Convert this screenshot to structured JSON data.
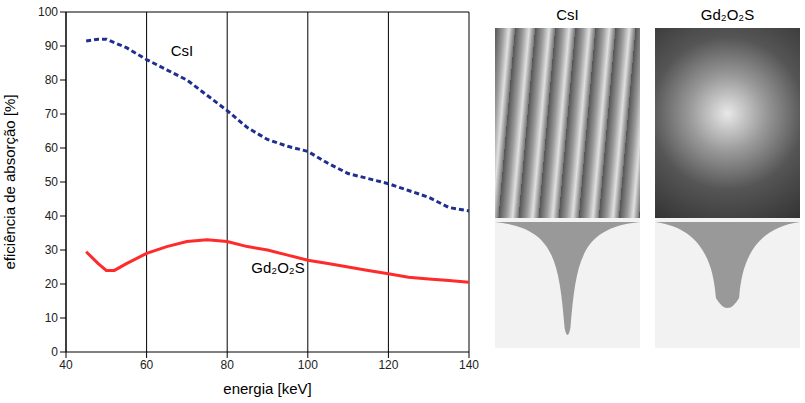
{
  "chart_data": {
    "type": "line",
    "x_label": "energia [keV]",
    "y_label": "eficiência de absorção [%]",
    "x": [
      45,
      48,
      50,
      52,
      55,
      60,
      65,
      70,
      75,
      80,
      85,
      90,
      95,
      100,
      105,
      110,
      115,
      120,
      125,
      130,
      135,
      140
    ],
    "series": [
      {
        "name": "CsI",
        "color": "#1f2f8f",
        "line_style": "dashed",
        "values": [
          91.5,
          92,
          92,
          91,
          89.5,
          86,
          83,
          80,
          75.5,
          71,
          66,
          62.5,
          60.5,
          59,
          55.5,
          52.5,
          51,
          49.5,
          47.5,
          45.5,
          42.5,
          41.5
        ]
      },
      {
        "name": "Gd₂O₂S",
        "color": "#ff2a2a",
        "line_style": "solid",
        "values": [
          29.5,
          26,
          24,
          24,
          26,
          29,
          31,
          32.5,
          33,
          32.5,
          31,
          30,
          28.5,
          27,
          26,
          25,
          24,
          23,
          22,
          21.5,
          21,
          20.5
        ]
      }
    ],
    "xlim": [
      40,
      140
    ],
    "xticks": [
      40,
      60,
      80,
      100,
      120,
      140
    ],
    "ylim": [
      0,
      100
    ],
    "yticks": [
      0,
      10,
      20,
      30,
      40,
      50,
      60,
      70,
      80,
      90,
      100
    ],
    "grid": true
  },
  "image_panels": [
    "CsI",
    "Gd₂O₂S"
  ]
}
